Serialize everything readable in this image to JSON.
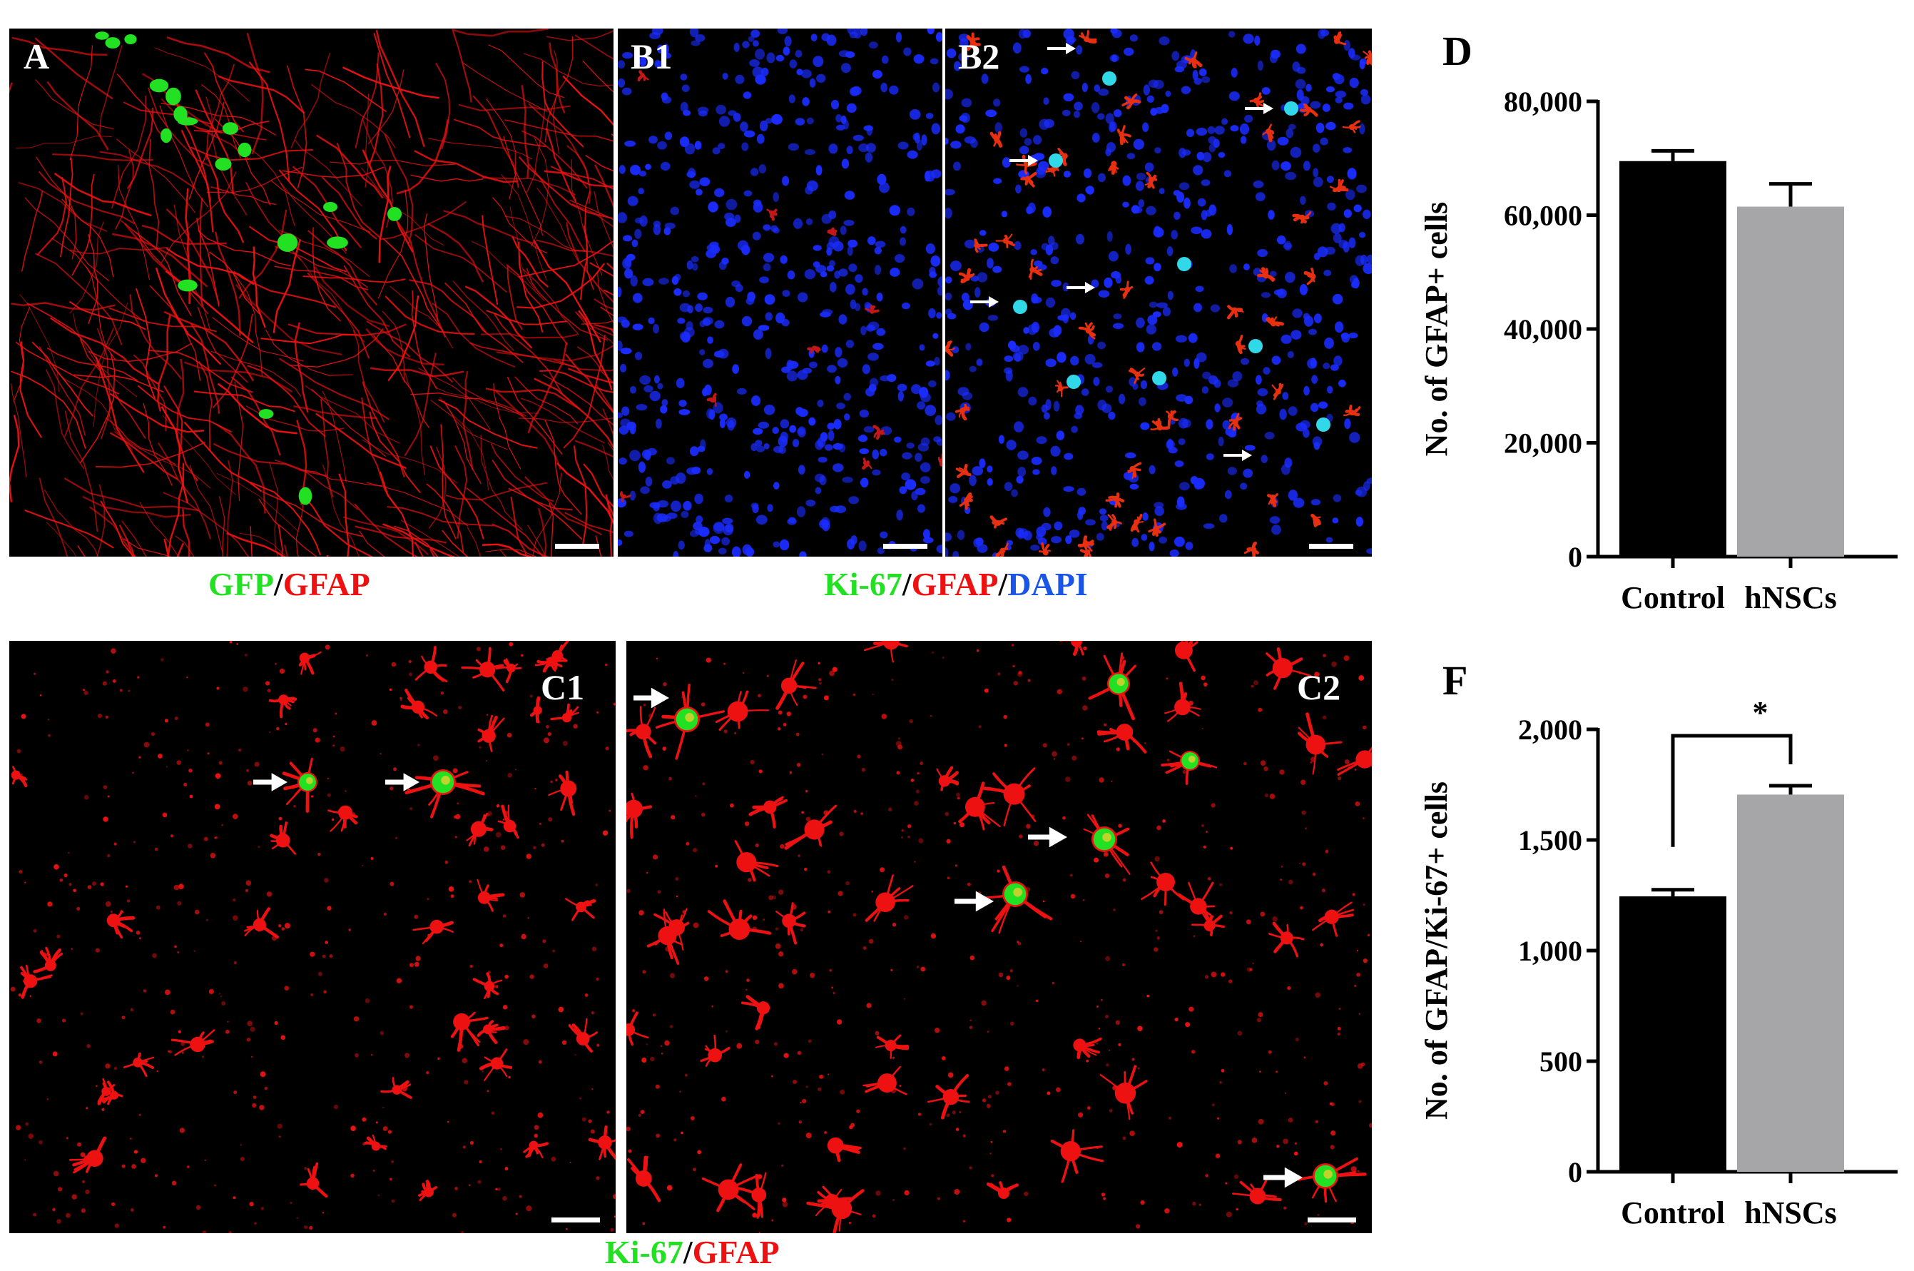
{
  "panels": {
    "A": {
      "label": "A"
    },
    "B1": {
      "label": "B1"
    },
    "B2": {
      "label": "B2"
    },
    "C1": {
      "label": "C1"
    },
    "C2": {
      "label": "C2"
    }
  },
  "captions": {
    "a": [
      {
        "text": "GFP",
        "color": "#22e022"
      },
      {
        "text": "/",
        "color": "#000000"
      },
      {
        "text": "GFAP",
        "color": "#ee1111"
      }
    ],
    "b": [
      {
        "text": "Ki-67",
        "color": "#22e022"
      },
      {
        "text": "/",
        "color": "#000000"
      },
      {
        "text": "GFAP",
        "color": "#ee1111"
      },
      {
        "text": "/",
        "color": "#000000"
      },
      {
        "text": "DAPI",
        "color": "#1a55e6"
      }
    ],
    "c": [
      {
        "text": "Ki-67",
        "color": "#22e022"
      },
      {
        "text": "/",
        "color": "#000000"
      },
      {
        "text": "GFAP",
        "color": "#ee1111"
      }
    ]
  },
  "colors": {
    "control_bar": "#000000",
    "hnscs_bar": "#a6a6a8",
    "gfap": "#ee1111",
    "dapi": "#1a2cff",
    "ki67": "#22e022"
  },
  "chart_data": [
    {
      "panel_label": "D",
      "type": "bar",
      "categories": [
        "Control",
        "hNSCs"
      ],
      "values": [
        69500,
        61500
      ],
      "errors": [
        1800,
        4000
      ],
      "ylabel": "No. of GFAP+ cells",
      "ylim": [
        0,
        80000
      ],
      "yticks": [
        0,
        20000,
        40000,
        60000,
        80000
      ],
      "ytick_labels": [
        "0",
        "20,000",
        "40,000",
        "60,000",
        "80,000"
      ],
      "significance": ""
    },
    {
      "panel_label": "F",
      "type": "bar",
      "categories": [
        "Control",
        "hNSCs"
      ],
      "values": [
        1245,
        1705
      ],
      "errors": [
        30,
        40
      ],
      "ylabel": "No. of GFAP/Ki-67+ cells",
      "ylim": [
        0,
        2000
      ],
      "yticks": [
        0,
        500,
        1000,
        1500,
        2000
      ],
      "ytick_labels": [
        "0",
        "500",
        "1,000",
        "1,500",
        "2,000"
      ],
      "significance": "*"
    }
  ]
}
